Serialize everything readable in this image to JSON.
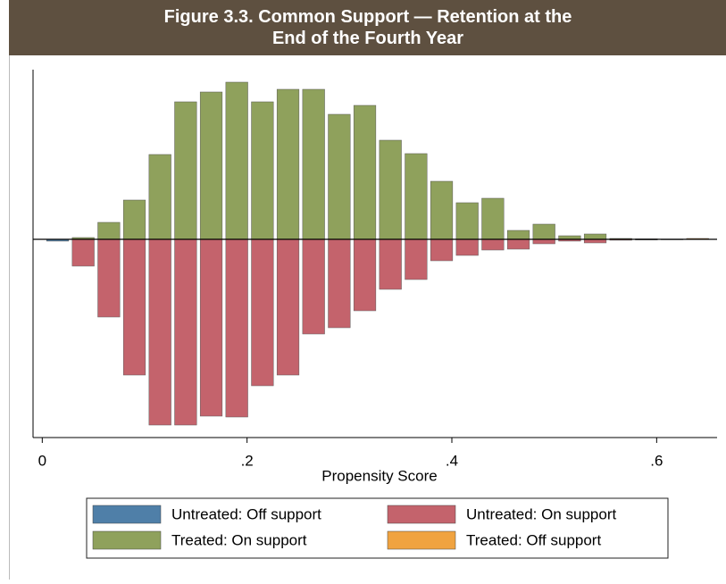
{
  "chart_data": {
    "type": "mirror-histogram",
    "title": "Figure 3.3. Common Support — Retention at the End of the Fourth Year",
    "x_label": "Propensity Score",
    "bins": [
      0.0025,
      0.0275,
      0.0525,
      0.0775,
      0.1025,
      0.1275,
      0.1525,
      0.1775,
      0.2025,
      0.2275,
      0.2525,
      0.2775,
      0.3025,
      0.3275,
      0.3525,
      0.3775,
      0.4025,
      0.4275,
      0.4525,
      0.4775,
      0.5025,
      0.5275,
      0.5525,
      0.5775,
      0.6025,
      0.6275,
      0.6525
    ],
    "xlim": [
      -0.009,
      0.659
    ],
    "xticks": [
      0,
      {
        "value": 0.2,
        "label": ".2"
      },
      {
        "value": 0.4,
        "label": ".4"
      },
      {
        "value": 0.6,
        "label": ".6"
      }
    ],
    "ylim": [
      -222,
      190
    ],
    "series": [
      {
        "name": "Untreated: Off support",
        "color": "#4f7fa8",
        "values": [
          -2,
          null,
          null,
          null,
          null,
          null,
          null,
          null,
          null,
          null,
          null,
          null,
          null,
          null,
          null,
          null,
          null,
          null,
          null,
          null,
          null,
          null,
          null,
          null,
          null,
          null
        ]
      },
      {
        "name": "Untreated: On support",
        "color": "#c4636c",
        "values": [
          null,
          -30,
          -87,
          -152,
          -208,
          -208,
          -198,
          -199,
          -164,
          -152,
          -106,
          -99,
          -80,
          -56,
          -45,
          -24,
          -18,
          -12,
          -11,
          -5,
          -2,
          -4,
          -1,
          -0.5,
          null,
          null
        ]
      },
      {
        "name": "Treated: On support",
        "color": "#8fa15c",
        "values": [
          null,
          2,
          19,
          44,
          95,
          154,
          165,
          176,
          154,
          168,
          168,
          140,
          150,
          111,
          96,
          65,
          41,
          46,
          10,
          17,
          4,
          6,
          1,
          0.5,
          0.3,
          null
        ]
      },
      {
        "name": "Treated: Off support",
        "color": "#f0a340",
        "values": [
          null,
          null,
          null,
          null,
          null,
          null,
          null,
          null,
          null,
          null,
          null,
          null,
          null,
          null,
          null,
          null,
          null,
          null,
          null,
          null,
          null,
          null,
          null,
          null,
          null,
          1
        ]
      }
    ]
  }
}
